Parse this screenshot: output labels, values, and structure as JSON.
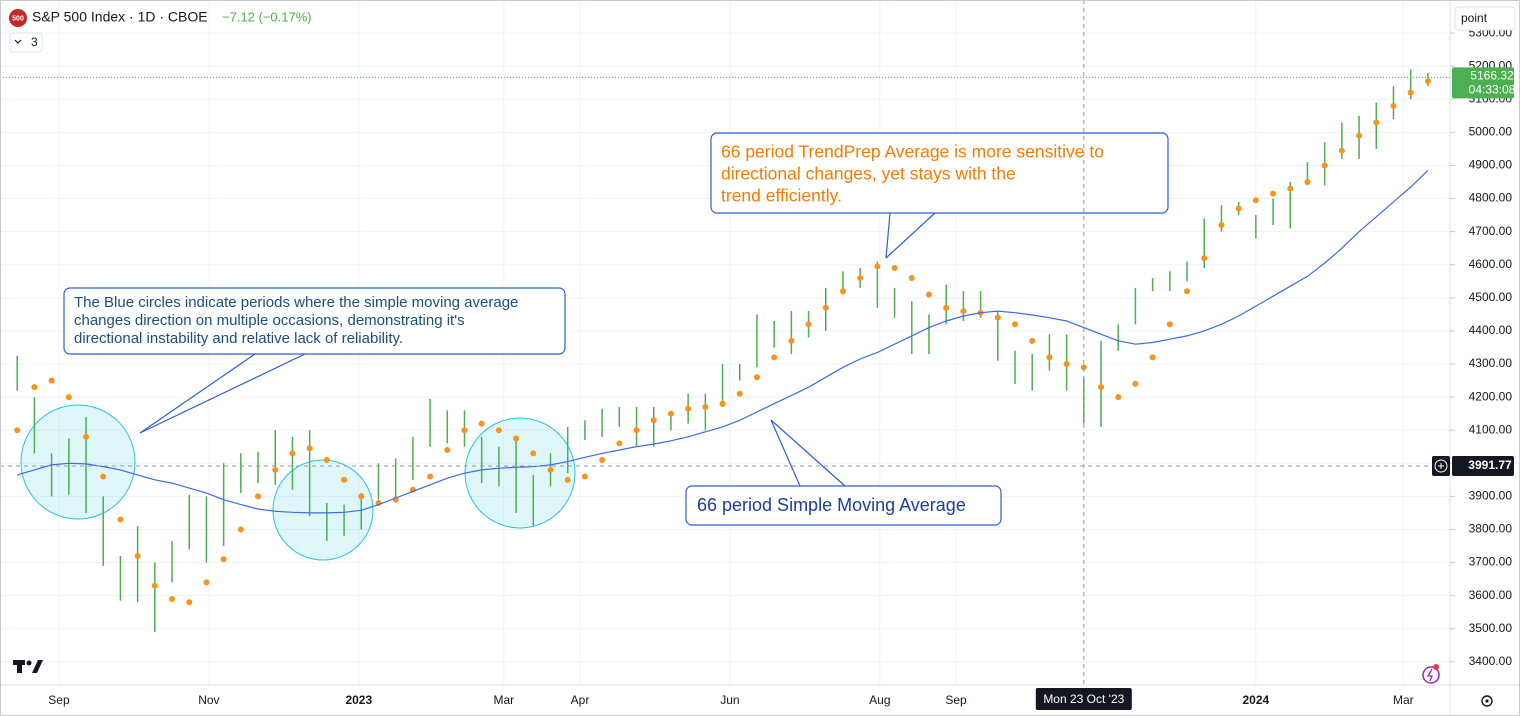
{
  "chart_data": {
    "type": "ohlc",
    "logo": "500",
    "title": "S&P 500 Index · 1D · CBOE",
    "change": "−7.12 (−0.17%)",
    "indicator_count": "3",
    "price_scale_mode": "point",
    "color": "#4caf50",
    "grid": true,
    "x": [
      "2022-08-15",
      "2022-08-22",
      "2022-08-29",
      "2022-09-05",
      "2022-09-12",
      "2022-09-19",
      "2022-09-26",
      "2022-10-03",
      "2022-10-10",
      "2022-10-17",
      "2022-10-24",
      "2022-10-31",
      "2022-11-07",
      "2022-11-14",
      "2022-11-21",
      "2022-11-28",
      "2022-12-05",
      "2022-12-12",
      "2022-12-19",
      "2022-12-26",
      "2023-01-02",
      "2023-01-09",
      "2023-01-16",
      "2023-01-23",
      "2023-01-30",
      "2023-02-06",
      "2023-02-13",
      "2023-02-20",
      "2023-02-27",
      "2023-03-06",
      "2023-03-13",
      "2023-03-20",
      "2023-03-27",
      "2023-04-03",
      "2023-04-10",
      "2023-04-17",
      "2023-04-24",
      "2023-05-01",
      "2023-05-08",
      "2023-05-15",
      "2023-05-22",
      "2023-05-29",
      "2023-06-05",
      "2023-06-12",
      "2023-06-19",
      "2023-06-26",
      "2023-07-03",
      "2023-07-10",
      "2023-07-17",
      "2023-07-24",
      "2023-07-31",
      "2023-08-07",
      "2023-08-14",
      "2023-08-21",
      "2023-08-28",
      "2023-09-04",
      "2023-09-11",
      "2023-09-18",
      "2023-09-25",
      "2023-10-02",
      "2023-10-09",
      "2023-10-16",
      "2023-10-23",
      "2023-10-30",
      "2023-11-06",
      "2023-11-13",
      "2023-11-20",
      "2023-11-27",
      "2023-12-04",
      "2023-12-11",
      "2023-12-18",
      "2023-12-25",
      "2024-01-01",
      "2024-01-08",
      "2024-01-15",
      "2024-01-22",
      "2024-01-29",
      "2024-02-05",
      "2024-02-12",
      "2024-02-19",
      "2024-02-26",
      "2024-03-04",
      "2024-03-11"
    ],
    "high": [
      4325,
      4200,
      4030,
      4075,
      4140,
      3900,
      3720,
      3810,
      3700,
      3765,
      3905,
      3900,
      4000,
      4030,
      4035,
      4100,
      4080,
      4100,
      3880,
      3875,
      3910,
      4000,
      4015,
      4080,
      4195,
      4160,
      4160,
      4080,
      4050,
      4080,
      3965,
      4030,
      4110,
      4130,
      4165,
      4170,
      4170,
      4170,
      4155,
      4210,
      4210,
      4300,
      4300,
      4450,
      4430,
      4460,
      4460,
      4530,
      4580,
      4590,
      4610,
      4530,
      4490,
      4450,
      4540,
      4520,
      4520,
      4460,
      4340,
      4330,
      4390,
      4390,
      4260,
      4370,
      4420,
      4530,
      4560,
      4580,
      4610,
      4740,
      4780,
      4790,
      4750,
      4800,
      4850,
      4910,
      4970,
      5030,
      5050,
      5090,
      5140,
      5190,
      5180
    ],
    "low": [
      4220,
      4030,
      3900,
      3905,
      3850,
      3690,
      3585,
      3580,
      3490,
      3640,
      3740,
      3700,
      3750,
      3910,
      3940,
      3935,
      3920,
      3840,
      3765,
      3780,
      3800,
      3890,
      3885,
      3950,
      4050,
      4060,
      4050,
      3940,
      3930,
      3850,
      3810,
      3930,
      3970,
      4070,
      4080,
      4110,
      4050,
      4050,
      4100,
      4120,
      4100,
      4170,
      4250,
      4290,
      4350,
      4330,
      4380,
      4400,
      4510,
      4530,
      4470,
      4440,
      4330,
      4330,
      4420,
      4430,
      4440,
      4310,
      4240,
      4220,
      4280,
      4220,
      4120,
      4110,
      4340,
      4420,
      4520,
      4520,
      4550,
      4590,
      4700,
      4750,
      4680,
      4720,
      4710,
      4840,
      4840,
      4920,
      4920,
      4950,
      5040,
      5100,
      5140
    ],
    "overlays": [
      {
        "style": "dots",
        "color": "#f7931e",
        "values": [
          4100,
          4230,
          4250,
          4200,
          4080,
          3960,
          3830,
          3720,
          3630,
          3590,
          3580,
          3640,
          3710,
          3800,
          3900,
          3980,
          4030,
          4045,
          4010,
          3950,
          3900,
          3880,
          3890,
          3920,
          3960,
          4040,
          4100,
          4120,
          4100,
          4075,
          4030,
          3980,
          3950,
          3960,
          4010,
          4060,
          4100,
          4130,
          4150,
          4165,
          4170,
          4180,
          4210,
          4260,
          4320,
          4370,
          4420,
          4470,
          4520,
          4560,
          4595,
          4590,
          4560,
          4510,
          4470,
          4460,
          4455,
          4440,
          4420,
          4370,
          4320,
          4300,
          4290,
          4230,
          4200,
          4240,
          4320,
          4420,
          4520,
          4620,
          4720,
          4770,
          4795,
          4815,
          4830,
          4850,
          4900,
          4945,
          4990,
          5030,
          5080,
          5120,
          5155
        ]
      },
      {
        "style": "line",
        "color": "#3d6be0",
        "values": [
          3965,
          3980,
          3995,
          4000,
          3998,
          3990,
          3980,
          3965,
          3950,
          3940,
          3925,
          3910,
          3890,
          3875,
          3862,
          3855,
          3852,
          3850,
          3850,
          3852,
          3858,
          3875,
          3895,
          3915,
          3935,
          3955,
          3970,
          3980,
          3985,
          3988,
          3990,
          3995,
          4005,
          4018,
          4030,
          4040,
          4050,
          4058,
          4068,
          4080,
          4095,
          4110,
          4130,
          4155,
          4180,
          4205,
          4230,
          4260,
          4290,
          4315,
          4335,
          4360,
          4385,
          4410,
          4430,
          4445,
          4455,
          4460,
          4455,
          4448,
          4440,
          4430,
          4410,
          4390,
          4370,
          4360,
          4365,
          4375,
          4385,
          4400,
          4420,
          4445,
          4475,
          4505,
          4535,
          4565,
          4605,
          4650,
          4700,
          4745,
          4790,
          4835,
          4885
        ]
      }
    ],
    "xlim": [
      "2022-08-08",
      "2024-03-20"
    ],
    "xticks": [
      {
        "value": "2022-09-01",
        "label": "Sep"
      },
      {
        "value": "2022-11-01",
        "label": "Nov"
      },
      {
        "value": "2023-01-01",
        "label": "2023"
      },
      {
        "value": "2023-03-01",
        "label": "Mar"
      },
      {
        "value": "2023-04-01",
        "label": "Apr"
      },
      {
        "value": "2023-06-01",
        "label": "Jun"
      },
      {
        "value": "2023-08-01",
        "label": "Aug"
      },
      {
        "value": "2023-09-01",
        "label": "Sep"
      },
      {
        "value": "2024-01-01",
        "label": "2024"
      },
      {
        "value": "2024-03-01",
        "label": "Mar"
      }
    ],
    "ylim": [
      3330,
      5400
    ],
    "yticks": [
      {
        "value": 3400,
        "label": "3400.00"
      },
      {
        "value": 3500,
        "label": "3500.00"
      },
      {
        "value": 3600,
        "label": "3600.00"
      },
      {
        "value": 3700,
        "label": "3700.00"
      },
      {
        "value": 3800,
        "label": "3800.00"
      },
      {
        "value": 3900,
        "label": "3900.00"
      },
      {
        "value": 4000,
        "label": "4000.00"
      },
      {
        "value": 4100,
        "label": "4100.00"
      },
      {
        "value": 4200,
        "label": "4200.00"
      },
      {
        "value": 4300,
        "label": "4300.00"
      },
      {
        "value": 4400,
        "label": "4400.00"
      },
      {
        "value": 4500,
        "label": "4500.00"
      },
      {
        "value": 4600,
        "label": "4600.00"
      },
      {
        "value": 4700,
        "label": "4700.00"
      },
      {
        "value": 4800,
        "label": "4800.00"
      },
      {
        "value": 4900,
        "label": "4900.00"
      },
      {
        "value": 5000,
        "label": "5000.00"
      },
      {
        "value": 5100,
        "label": "5100.00"
      },
      {
        "value": 5200,
        "label": "5200.00"
      },
      {
        "value": 5300,
        "label": "5300.00"
      }
    ],
    "last_price": {
      "value": 5166.32,
      "countdown": "04:33:08"
    },
    "crosshair": {
      "x": "2023-10-23",
      "x_label": "Mon 23 Oct '23",
      "y": 3991.77
    },
    "annotations": [
      {
        "lines": [
          "The Blue circles indicate periods where the simple moving average",
          "changes direction on multiple occasions, demonstrating it's",
          "directional instability and relative lack of reliability."
        ]
      },
      {
        "lines": [
          "66 period TrendPrep Average is more sensitive to",
          "directional changes, yet stays with the",
          "trend efficiently."
        ]
      },
      {
        "lines": [
          "66 period Simple Moving Average"
        ]
      }
    ]
  }
}
